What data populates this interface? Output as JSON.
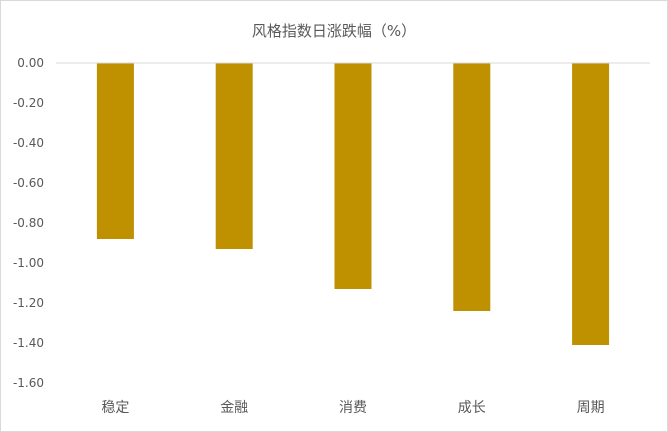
{
  "chart_data": {
    "type": "bar",
    "title": "风格指数日涨跌幅（%）",
    "categories": [
      "稳定",
      "金融",
      "消费",
      "成长",
      "周期"
    ],
    "values": [
      -0.88,
      -0.93,
      -1.13,
      -1.24,
      -1.41
    ],
    "ylim": [
      -1.6,
      0
    ],
    "yticks": [
      "0.00",
      "-0.20",
      "-0.40",
      "-0.60",
      "-0.80",
      "-1.00",
      "-1.20",
      "-1.40",
      "-1.60"
    ],
    "xlabel": "",
    "ylabel": "",
    "grid": false,
    "legend": "none",
    "bar_color": "#BF9000",
    "axis_color": "#d9d9d9",
    "text_color": "#595959"
  }
}
